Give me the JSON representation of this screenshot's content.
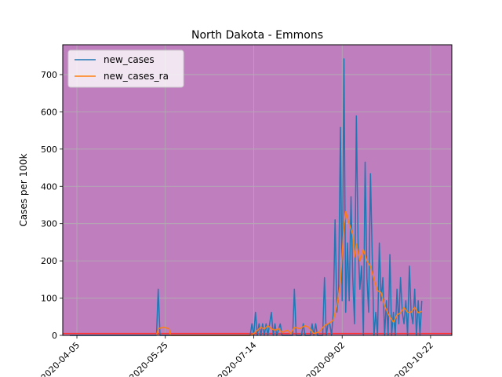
{
  "chart_data": {
    "type": "line",
    "title": "North Dakota - Emmons",
    "xlabel": "",
    "ylabel": "Cases per 100k",
    "x_tick_labels": [
      "2020-04-05",
      "2020-05-25",
      "2020-07-14",
      "2020-09-02",
      "2020-10-22"
    ],
    "y_tick_labels": [
      "0",
      "100",
      "200",
      "300",
      "400",
      "500",
      "600",
      "700"
    ],
    "ylim": [
      0,
      780
    ],
    "xlim": [
      "2020-03-28",
      "2020-11-03"
    ],
    "grid": true,
    "legend_position": "top-left",
    "background_color": "#bf7fbf",
    "threshold_line": {
      "value": 5,
      "color": "#ff3333"
    },
    "series": [
      {
        "name": "new_cases",
        "color": "#1f77b4",
        "points": [
          [
            "2020-04-01",
            0
          ],
          [
            "2020-05-20",
            0
          ],
          [
            "2020-05-21",
            124
          ],
          [
            "2020-05-22",
            0
          ],
          [
            "2020-07-12",
            0
          ],
          [
            "2020-07-13",
            31
          ],
          [
            "2020-07-14",
            0
          ],
          [
            "2020-07-15",
            62
          ],
          [
            "2020-07-16",
            0
          ],
          [
            "2020-07-17",
            31
          ],
          [
            "2020-07-18",
            0
          ],
          [
            "2020-07-19",
            31
          ],
          [
            "2020-07-20",
            0
          ],
          [
            "2020-07-21",
            31
          ],
          [
            "2020-07-22",
            0
          ],
          [
            "2020-07-24",
            62
          ],
          [
            "2020-07-25",
            0
          ],
          [
            "2020-07-26",
            31
          ],
          [
            "2020-07-27",
            0
          ],
          [
            "2020-07-29",
            31
          ],
          [
            "2020-07-30",
            0
          ],
          [
            "2020-08-05",
            0
          ],
          [
            "2020-08-06",
            124
          ],
          [
            "2020-08-07",
            0
          ],
          [
            "2020-08-10",
            0
          ],
          [
            "2020-08-11",
            31
          ],
          [
            "2020-08-12",
            0
          ],
          [
            "2020-08-15",
            0
          ],
          [
            "2020-08-16",
            31
          ],
          [
            "2020-08-17",
            0
          ],
          [
            "2020-08-18",
            31
          ],
          [
            "2020-08-19",
            0
          ],
          [
            "2020-08-22",
            0
          ],
          [
            "2020-08-23",
            155
          ],
          [
            "2020-08-24",
            0
          ],
          [
            "2020-08-25",
            31
          ],
          [
            "2020-08-26",
            31
          ],
          [
            "2020-08-27",
            0
          ],
          [
            "2020-08-28",
            62
          ],
          [
            "2020-08-29",
            310
          ],
          [
            "2020-08-30",
            62
          ],
          [
            "2020-08-31",
            124
          ],
          [
            "2020-09-01",
            558
          ],
          [
            "2020-09-02",
            93
          ],
          [
            "2020-09-03",
            742
          ],
          [
            "2020-09-04",
            62
          ],
          [
            "2020-09-05",
            248
          ],
          [
            "2020-09-06",
            93
          ],
          [
            "2020-09-07",
            372
          ],
          [
            "2020-09-08",
            155
          ],
          [
            "2020-09-09",
            31
          ],
          [
            "2020-09-10",
            589
          ],
          [
            "2020-09-11",
            248
          ],
          [
            "2020-09-12",
            124
          ],
          [
            "2020-09-13",
            186
          ],
          [
            "2020-09-14",
            0
          ],
          [
            "2020-09-15",
            465
          ],
          [
            "2020-09-16",
            155
          ],
          [
            "2020-09-17",
            62
          ],
          [
            "2020-09-18",
            434
          ],
          [
            "2020-09-19",
            217
          ],
          [
            "2020-09-20",
            0
          ],
          [
            "2020-09-21",
            62
          ],
          [
            "2020-09-22",
            0
          ],
          [
            "2020-09-23",
            248
          ],
          [
            "2020-09-24",
            93
          ],
          [
            "2020-09-25",
            155
          ],
          [
            "2020-09-26",
            0
          ],
          [
            "2020-09-27",
            93
          ],
          [
            "2020-09-28",
            0
          ],
          [
            "2020-09-29",
            217
          ],
          [
            "2020-09-30",
            0
          ],
          [
            "2020-10-01",
            62
          ],
          [
            "2020-10-02",
            0
          ],
          [
            "2020-10-03",
            124
          ],
          [
            "2020-10-04",
            31
          ],
          [
            "2020-10-05",
            155
          ],
          [
            "2020-10-06",
            62
          ],
          [
            "2020-10-07",
            31
          ],
          [
            "2020-10-08",
            93
          ],
          [
            "2020-10-09",
            0
          ],
          [
            "2020-10-10",
            186
          ],
          [
            "2020-10-11",
            62
          ],
          [
            "2020-10-12",
            31
          ],
          [
            "2020-10-13",
            124
          ],
          [
            "2020-10-14",
            0
          ],
          [
            "2020-10-15",
            93
          ],
          [
            "2020-10-16",
            0
          ],
          [
            "2020-10-17",
            93
          ]
        ]
      },
      {
        "name": "new_cases_ra",
        "color": "#ff7f0e",
        "points": [
          [
            "2020-05-20",
            0
          ],
          [
            "2020-05-21",
            18
          ],
          [
            "2020-05-24",
            22
          ],
          [
            "2020-05-27",
            18
          ],
          [
            "2020-05-28",
            0
          ],
          [
            "2020-07-12",
            0
          ],
          [
            "2020-07-14",
            5
          ],
          [
            "2020-07-16",
            13
          ],
          [
            "2020-07-18",
            22
          ],
          [
            "2020-07-20",
            17
          ],
          [
            "2020-07-22",
            26
          ],
          [
            "2020-07-24",
            18
          ],
          [
            "2020-07-26",
            14
          ],
          [
            "2020-07-28",
            18
          ],
          [
            "2020-07-30",
            8
          ],
          [
            "2020-08-02",
            14
          ],
          [
            "2020-08-04",
            5
          ],
          [
            "2020-08-06",
            22
          ],
          [
            "2020-08-09",
            18
          ],
          [
            "2020-08-12",
            26
          ],
          [
            "2020-08-14",
            22
          ],
          [
            "2020-08-17",
            5
          ],
          [
            "2020-08-20",
            9
          ],
          [
            "2020-08-23",
            26
          ],
          [
            "2020-08-25",
            31
          ],
          [
            "2020-08-28",
            40
          ],
          [
            "2020-08-30",
            80
          ],
          [
            "2020-09-01",
            142
          ],
          [
            "2020-09-03",
            296
          ],
          [
            "2020-09-04",
            332
          ],
          [
            "2020-09-06",
            300
          ],
          [
            "2020-09-08",
            270
          ],
          [
            "2020-09-09",
            210
          ],
          [
            "2020-09-10",
            245
          ],
          [
            "2020-09-12",
            200
          ],
          [
            "2020-09-14",
            230
          ],
          [
            "2020-09-16",
            200
          ],
          [
            "2020-09-18",
            185
          ],
          [
            "2020-09-20",
            150
          ],
          [
            "2020-09-22",
            120
          ],
          [
            "2020-09-24",
            115
          ],
          [
            "2020-09-26",
            80
          ],
          [
            "2020-09-28",
            58
          ],
          [
            "2020-10-01",
            35
          ],
          [
            "2020-10-03",
            55
          ],
          [
            "2020-10-05",
            60
          ],
          [
            "2020-10-07",
            75
          ],
          [
            "2020-10-09",
            62
          ],
          [
            "2020-10-11",
            62
          ],
          [
            "2020-10-13",
            75
          ],
          [
            "2020-10-15",
            60
          ],
          [
            "2020-10-17",
            65
          ]
        ]
      }
    ]
  }
}
